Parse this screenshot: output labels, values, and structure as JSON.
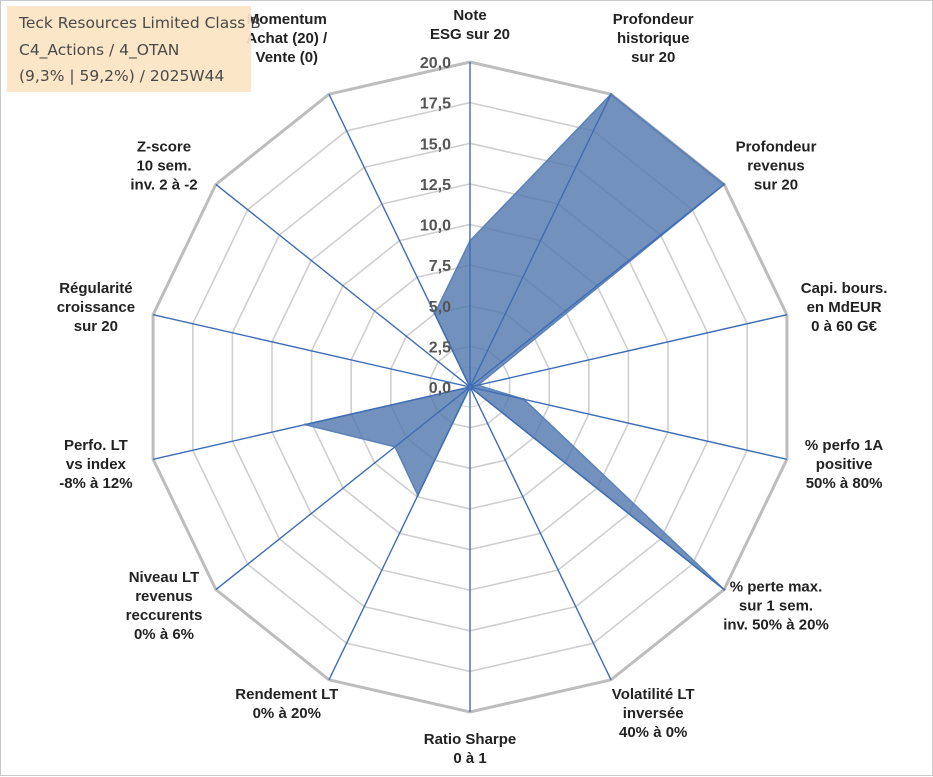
{
  "title_box": {
    "line1": "Teck Resources Limited Class B",
    "line2": "C4_Actions / 4_OTAN",
    "line3": "(9,3% | 59,2%) / 2025W44"
  },
  "chart_data": {
    "type": "radar",
    "rmin": 0,
    "rmax": 20,
    "tick_labels": [
      "0,0",
      "2,5",
      "5,0",
      "7,5",
      "10,0",
      "12,5",
      "15,0",
      "17,5",
      "20,0"
    ],
    "axes": [
      [
        "Note",
        "ESG sur 20"
      ],
      [
        "Profondeur",
        "historique",
        "sur 20"
      ],
      [
        "Profondeur",
        "revenus",
        "sur 20"
      ],
      [
        "Capi. bours.",
        "en MdEUR",
        "0 à 60 G€"
      ],
      [
        "% perfo 1A",
        "positive",
        "50% à 80%"
      ],
      [
        "% perte max.",
        "sur 1 sem.",
        "inv. 50% à 20%"
      ],
      [
        "Volatilité LT",
        "inversée",
        "40% à 0%"
      ],
      [
        "Ratio Sharpe",
        "0 à 1"
      ],
      [
        "Rendement LT",
        "0% à 20%"
      ],
      [
        "Niveau LT",
        "revenus",
        "reccurents",
        "0% à 6%"
      ],
      [
        "Perfo. LT",
        "vs index",
        "-8% à 12%"
      ],
      [
        "Régularité",
        "croissance",
        "sur 20"
      ],
      [
        "Z-score",
        "10 sem.",
        "inv. 2 à -2"
      ],
      [
        "Momentum",
        "Achat (20) /",
        "Vente (0)"
      ]
    ],
    "values": [
      9.0,
      20.0,
      20.0,
      0.5,
      3.4,
      20.0,
      0.0,
      0.0,
      7.4,
      5.9,
      10.4,
      0.0,
      0.0,
      5.0
    ],
    "colors": {
      "fill": "#4f76ad",
      "fill_opacity": 0.8,
      "spokes": "#3e6cb5",
      "grid": "#c8c8c8",
      "title_bg": "#fbe5c4"
    }
  }
}
